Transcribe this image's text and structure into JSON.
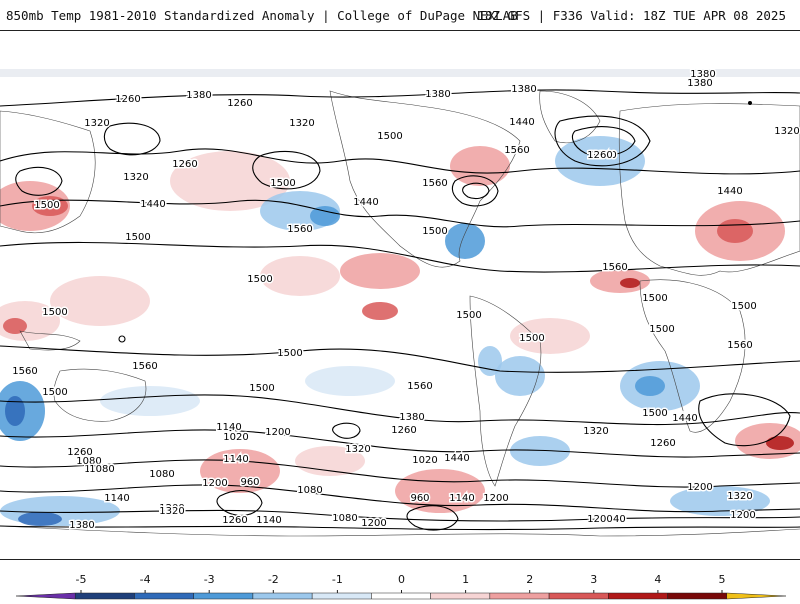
{
  "header": {
    "title_left": "850mb Temp 1981-2010 Standardized Anomaly | College of DuPage NEXLAB",
    "title_right": "18Z GFS | F336 Valid: 18Z TUE APR 08 2025"
  },
  "contour_labels": [
    "1380",
    "1380",
    "1380",
    "1380",
    "1320",
    "1320",
    "1320",
    "1320",
    "1260",
    "1260",
    "1440",
    "1440",
    "1440",
    "1440",
    "1440",
    "1440",
    "1500",
    "1500",
    "1500",
    "1500",
    "1500",
    "1500",
    "1500",
    "1500",
    "1500",
    "1500",
    "1500",
    "1500",
    "1500",
    "1500",
    "1500",
    "1500",
    "1560",
    "1560",
    "1560",
    "1560",
    "1560",
    "1560",
    "1560",
    "1560",
    "1140",
    "1140",
    "1140",
    "1140",
    "1140",
    "1140",
    "1140",
    "1200",
    "1200",
    "1200",
    "1200",
    "1200",
    "1200",
    "1200",
    "1200",
    "1020",
    "1020",
    "1020",
    "1080",
    "1080",
    "1080",
    "1080",
    "1080",
    "960",
    "960",
    "1260",
    "1260",
    "1260",
    "1260",
    "1260",
    "1260",
    "1320",
    "1320",
    "1320",
    "1320",
    "1380",
    "1380",
    "1380"
  ],
  "colorbar": {
    "ticks": [
      "-5",
      "-4",
      "-3",
      "-2",
      "-1",
      "0",
      "1",
      "2",
      "3",
      "4",
      "5"
    ],
    "colors": [
      "#6a2fa8",
      "#1f3f7a",
      "#2f6ab8",
      "#4e9ad8",
      "#9cc8ec",
      "#d8e8f6",
      "#ffffff",
      "#f6d4d4",
      "#eea0a0",
      "#d85858",
      "#b01818",
      "#780808",
      "#f0c018"
    ]
  }
}
